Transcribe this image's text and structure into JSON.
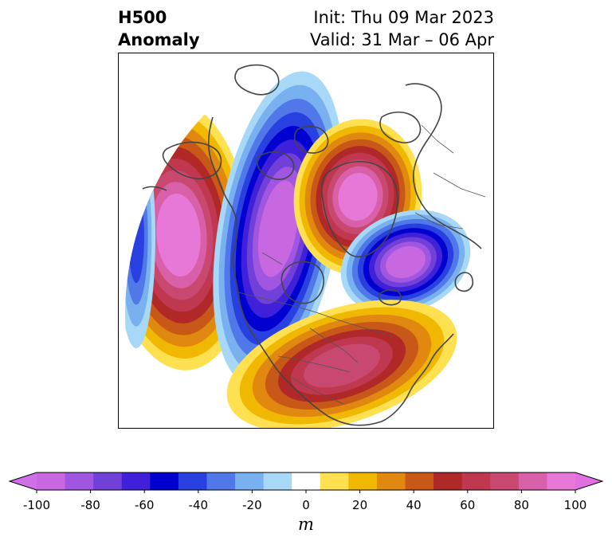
{
  "header": {
    "title_line1": "H500",
    "title_line2": "Anomaly",
    "init_line": "Init: Thu 09 Mar 2023",
    "valid_line": "Valid: 31 Mar – 06 Apr"
  },
  "colorbar": {
    "unit": "m",
    "ticks": [
      "-100",
      "-80",
      "-60",
      "-40",
      "-20",
      "0",
      "20",
      "40",
      "60",
      "80",
      "100"
    ],
    "colors": [
      "#c868e0",
      "#a056e0",
      "#7040d8",
      "#4020d8",
      "#0000d0",
      "#2840e0",
      "#5078e8",
      "#78b0f0",
      "#a8d8f8",
      "#ffffff",
      "#ffe050",
      "#f0b800",
      "#e08810",
      "#c85818",
      "#b02828",
      "#c03850",
      "#c84870",
      "#d860a8",
      "#e878d8"
    ],
    "extend_low_color": "#d070e8",
    "extend_high_color": "#e070e0"
  },
  "map": {
    "projection": "polar stereographic, North America / North Atlantic",
    "features": [
      {
        "name": "pacific-ridge",
        "sign": "positive",
        "peak_m": 100
      },
      {
        "name": "canada-trough",
        "sign": "negative",
        "peak_m": -100
      },
      {
        "name": "greenland-ridge",
        "sign": "positive",
        "peak_m": 100
      },
      {
        "name": "europe-trough",
        "sign": "negative",
        "peak_m": -100
      },
      {
        "name": "southeast-us-ridge",
        "sign": "positive",
        "peak_m": 80
      },
      {
        "name": "gulf-of-alaska-trough",
        "sign": "negative",
        "peak_m": -60
      }
    ]
  }
}
